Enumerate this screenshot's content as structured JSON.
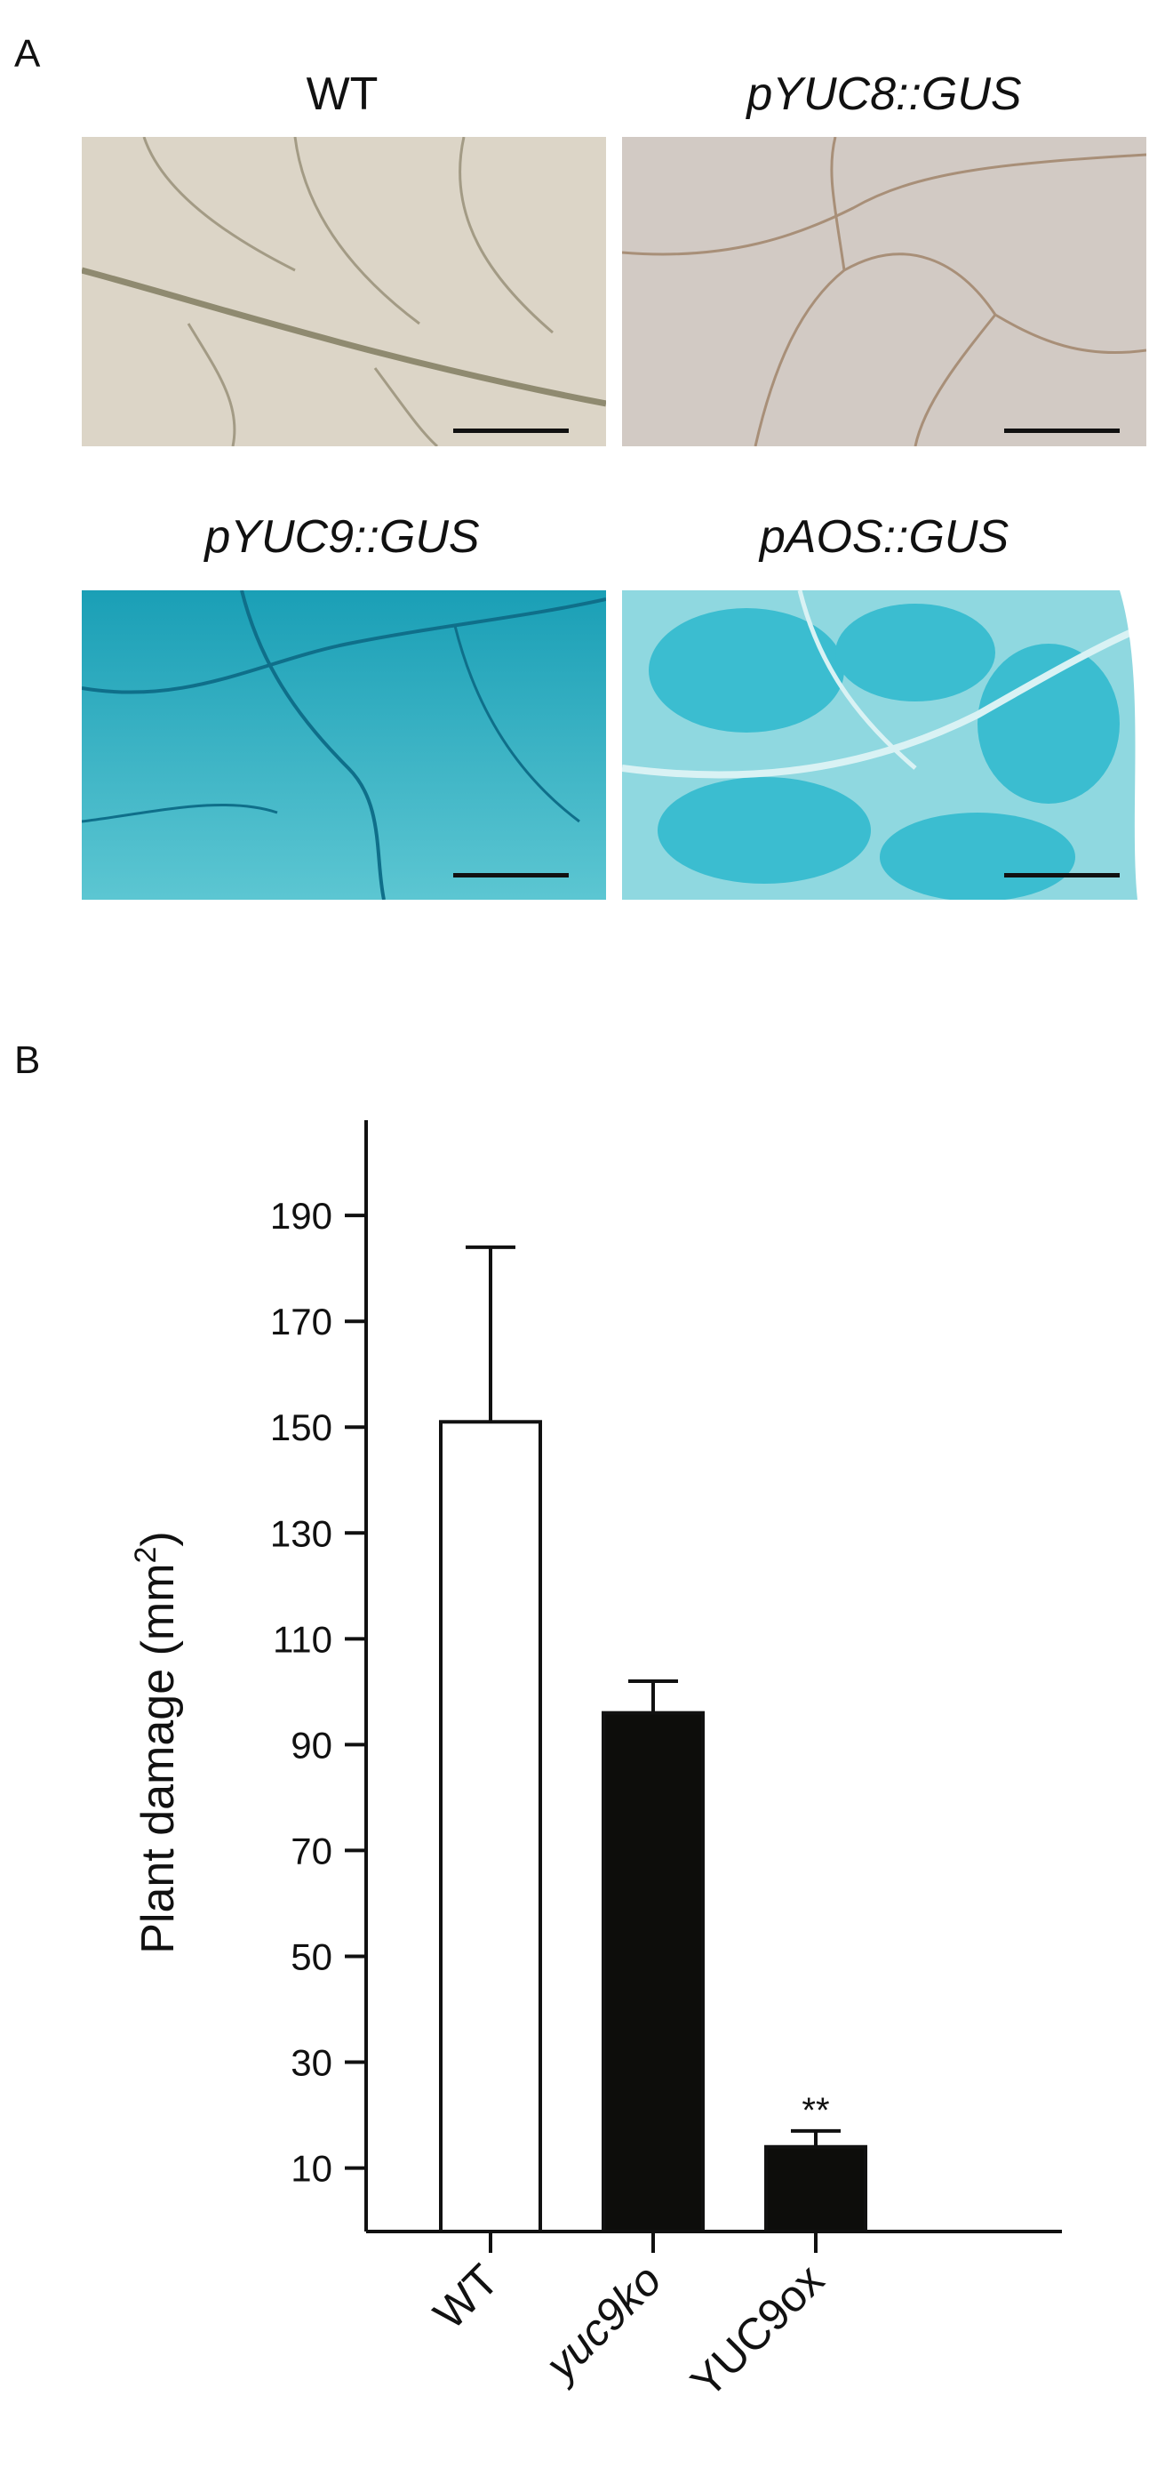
{
  "panel_a": {
    "label": "A",
    "images": [
      {
        "title": "WT",
        "italic": false,
        "stain": "none",
        "color": "#d9d2c4"
      },
      {
        "title": "pYUC8::GUS",
        "italic": true,
        "stain": "none",
        "color": "#cfc6bf"
      },
      {
        "title": "pYUC9::GUS",
        "italic": true,
        "stain": "GUS",
        "color": "#2fb3c6"
      },
      {
        "title": "pAOS::GUS",
        "italic": true,
        "stain": "GUS",
        "color": "#3fbfd0"
      }
    ]
  },
  "panel_b": {
    "label": "B"
  },
  "chart_data": {
    "type": "bar",
    "categories": [
      "WT",
      "yuc9ko",
      "YUC9ox"
    ],
    "values": [
      151,
      96,
      14
    ],
    "errors": [
      33,
      6,
      3
    ],
    "bar_colors": [
      "#ffffff",
      "#0d0d0b",
      "#0d0d0b"
    ],
    "annotations": [
      "",
      "",
      "**"
    ],
    "ylabel": "Plant  damage (mm",
    "ylabel_sup": "2",
    "ylabel_close": ")",
    "yticks": [
      10,
      30,
      50,
      70,
      90,
      110,
      130,
      150,
      170,
      190
    ],
    "ylim": [
      -2,
      208
    ],
    "xlabel": "",
    "grid": false,
    "italic_categories": [
      false,
      true,
      false
    ]
  }
}
